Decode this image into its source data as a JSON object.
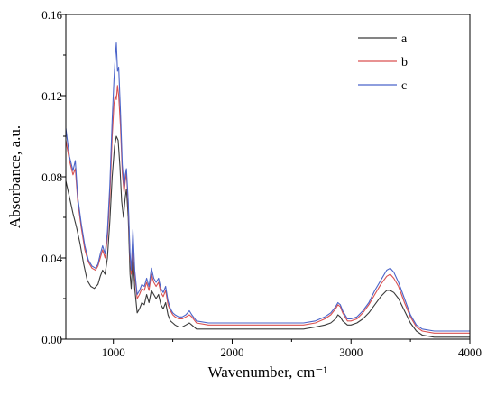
{
  "chart_data": {
    "type": "line",
    "xlabel": "Wavenumber, cm⁻¹",
    "ylabel": "Absorbance, a.u.",
    "xlim": [
      600,
      4000
    ],
    "ylim": [
      0,
      0.16
    ],
    "x_ticks": [
      1000,
      2000,
      3000,
      4000
    ],
    "y_ticks": [
      0.0,
      0.04,
      0.08,
      0.12,
      0.16
    ],
    "x_tick_labels": [
      "1000",
      "2000",
      "3000",
      "4000"
    ],
    "y_tick_labels": [
      "0.00",
      "0.04",
      "0.08",
      "0.12",
      "0.16"
    ],
    "grid": false,
    "legend_position": "top-right",
    "series": [
      {
        "name": "a",
        "color": "#3a3a3a",
        "points": [
          [
            600,
            0.078
          ],
          [
            630,
            0.07
          ],
          [
            660,
            0.062
          ],
          [
            690,
            0.055
          ],
          [
            720,
            0.047
          ],
          [
            750,
            0.037
          ],
          [
            780,
            0.029
          ],
          [
            810,
            0.026
          ],
          [
            840,
            0.025
          ],
          [
            870,
            0.027
          ],
          [
            890,
            0.031
          ],
          [
            910,
            0.034
          ],
          [
            930,
            0.032
          ],
          [
            950,
            0.04
          ],
          [
            970,
            0.058
          ],
          [
            990,
            0.08
          ],
          [
            1010,
            0.095
          ],
          [
            1025,
            0.1
          ],
          [
            1040,
            0.098
          ],
          [
            1055,
            0.085
          ],
          [
            1070,
            0.068
          ],
          [
            1085,
            0.06
          ],
          [
            1100,
            0.07
          ],
          [
            1110,
            0.074
          ],
          [
            1125,
            0.06
          ],
          [
            1140,
            0.032
          ],
          [
            1150,
            0.025
          ],
          [
            1165,
            0.042
          ],
          [
            1180,
            0.025
          ],
          [
            1200,
            0.013
          ],
          [
            1220,
            0.015
          ],
          [
            1240,
            0.018
          ],
          [
            1260,
            0.017
          ],
          [
            1280,
            0.022
          ],
          [
            1300,
            0.018
          ],
          [
            1320,
            0.024
          ],
          [
            1340,
            0.022
          ],
          [
            1360,
            0.02
          ],
          [
            1380,
            0.022
          ],
          [
            1400,
            0.017
          ],
          [
            1420,
            0.015
          ],
          [
            1440,
            0.018
          ],
          [
            1460,
            0.012
          ],
          [
            1480,
            0.009
          ],
          [
            1500,
            0.008
          ],
          [
            1520,
            0.007
          ],
          [
            1550,
            0.006
          ],
          [
            1580,
            0.006
          ],
          [
            1610,
            0.007
          ],
          [
            1640,
            0.008
          ],
          [
            1660,
            0.007
          ],
          [
            1700,
            0.005
          ],
          [
            1800,
            0.005
          ],
          [
            1900,
            0.005
          ],
          [
            2000,
            0.005
          ],
          [
            2100,
            0.005
          ],
          [
            2200,
            0.005
          ],
          [
            2300,
            0.005
          ],
          [
            2400,
            0.005
          ],
          [
            2500,
            0.005
          ],
          [
            2600,
            0.005
          ],
          [
            2700,
            0.006
          ],
          [
            2780,
            0.007
          ],
          [
            2830,
            0.008
          ],
          [
            2870,
            0.01
          ],
          [
            2890,
            0.012
          ],
          [
            2910,
            0.011
          ],
          [
            2930,
            0.009
          ],
          [
            2970,
            0.007
          ],
          [
            3000,
            0.007
          ],
          [
            3050,
            0.008
          ],
          [
            3100,
            0.01
          ],
          [
            3150,
            0.013
          ],
          [
            3200,
            0.017
          ],
          [
            3250,
            0.021
          ],
          [
            3300,
            0.024
          ],
          [
            3330,
            0.024
          ],
          [
            3360,
            0.023
          ],
          [
            3400,
            0.02
          ],
          [
            3450,
            0.014
          ],
          [
            3500,
            0.008
          ],
          [
            3550,
            0.004
          ],
          [
            3600,
            0.002
          ],
          [
            3700,
            0.001
          ],
          [
            3800,
            0.001
          ],
          [
            3900,
            0.001
          ],
          [
            4000,
            0.001
          ]
        ]
      },
      {
        "name": "b",
        "color": "#d95050",
        "points": [
          [
            600,
            0.098
          ],
          [
            630,
            0.088
          ],
          [
            660,
            0.081
          ],
          [
            680,
            0.084
          ],
          [
            700,
            0.068
          ],
          [
            730,
            0.055
          ],
          [
            760,
            0.044
          ],
          [
            790,
            0.038
          ],
          [
            820,
            0.035
          ],
          [
            850,
            0.034
          ],
          [
            870,
            0.036
          ],
          [
            890,
            0.04
          ],
          [
            910,
            0.044
          ],
          [
            930,
            0.04
          ],
          [
            950,
            0.05
          ],
          [
            970,
            0.07
          ],
          [
            990,
            0.1
          ],
          [
            1005,
            0.116
          ],
          [
            1015,
            0.12
          ],
          [
            1025,
            0.118
          ],
          [
            1035,
            0.125
          ],
          [
            1045,
            0.12
          ],
          [
            1060,
            0.105
          ],
          [
            1075,
            0.082
          ],
          [
            1090,
            0.072
          ],
          [
            1100,
            0.078
          ],
          [
            1110,
            0.082
          ],
          [
            1125,
            0.066
          ],
          [
            1140,
            0.04
          ],
          [
            1150,
            0.032
          ],
          [
            1165,
            0.05
          ],
          [
            1180,
            0.032
          ],
          [
            1200,
            0.02
          ],
          [
            1220,
            0.022
          ],
          [
            1240,
            0.025
          ],
          [
            1260,
            0.024
          ],
          [
            1280,
            0.028
          ],
          [
            1300,
            0.024
          ],
          [
            1320,
            0.032
          ],
          [
            1340,
            0.028
          ],
          [
            1360,
            0.026
          ],
          [
            1380,
            0.028
          ],
          [
            1400,
            0.023
          ],
          [
            1420,
            0.021
          ],
          [
            1440,
            0.024
          ],
          [
            1460,
            0.017
          ],
          [
            1480,
            0.014
          ],
          [
            1500,
            0.012
          ],
          [
            1520,
            0.011
          ],
          [
            1550,
            0.01
          ],
          [
            1580,
            0.01
          ],
          [
            1610,
            0.011
          ],
          [
            1640,
            0.012
          ],
          [
            1660,
            0.011
          ],
          [
            1700,
            0.008
          ],
          [
            1800,
            0.007
          ],
          [
            1900,
            0.007
          ],
          [
            2000,
            0.007
          ],
          [
            2100,
            0.007
          ],
          [
            2200,
            0.007
          ],
          [
            2300,
            0.007
          ],
          [
            2400,
            0.007
          ],
          [
            2500,
            0.007
          ],
          [
            2600,
            0.007
          ],
          [
            2700,
            0.008
          ],
          [
            2780,
            0.01
          ],
          [
            2830,
            0.012
          ],
          [
            2870,
            0.015
          ],
          [
            2890,
            0.017
          ],
          [
            2910,
            0.016
          ],
          [
            2930,
            0.013
          ],
          [
            2970,
            0.009
          ],
          [
            3000,
            0.009
          ],
          [
            3050,
            0.01
          ],
          [
            3100,
            0.013
          ],
          [
            3150,
            0.017
          ],
          [
            3200,
            0.022
          ],
          [
            3250,
            0.027
          ],
          [
            3300,
            0.031
          ],
          [
            3330,
            0.032
          ],
          [
            3360,
            0.03
          ],
          [
            3400,
            0.026
          ],
          [
            3450,
            0.018
          ],
          [
            3500,
            0.011
          ],
          [
            3550,
            0.006
          ],
          [
            3600,
            0.004
          ],
          [
            3700,
            0.003
          ],
          [
            3800,
            0.003
          ],
          [
            3900,
            0.003
          ],
          [
            4000,
            0.003
          ]
        ]
      },
      {
        "name": "c",
        "color": "#4a63c9",
        "points": [
          [
            600,
            0.104
          ],
          [
            630,
            0.09
          ],
          [
            660,
            0.083
          ],
          [
            680,
            0.088
          ],
          [
            700,
            0.07
          ],
          [
            730,
            0.057
          ],
          [
            760,
            0.046
          ],
          [
            790,
            0.039
          ],
          [
            820,
            0.036
          ],
          [
            850,
            0.035
          ],
          [
            870,
            0.037
          ],
          [
            890,
            0.042
          ],
          [
            910,
            0.046
          ],
          [
            930,
            0.042
          ],
          [
            950,
            0.053
          ],
          [
            970,
            0.076
          ],
          [
            990,
            0.108
          ],
          [
            1005,
            0.128
          ],
          [
            1015,
            0.138
          ],
          [
            1025,
            0.146
          ],
          [
            1035,
            0.132
          ],
          [
            1045,
            0.134
          ],
          [
            1060,
            0.112
          ],
          [
            1075,
            0.086
          ],
          [
            1090,
            0.075
          ],
          [
            1100,
            0.081
          ],
          [
            1110,
            0.084
          ],
          [
            1125,
            0.068
          ],
          [
            1140,
            0.042
          ],
          [
            1150,
            0.034
          ],
          [
            1165,
            0.054
          ],
          [
            1180,
            0.034
          ],
          [
            1200,
            0.022
          ],
          [
            1220,
            0.024
          ],
          [
            1240,
            0.027
          ],
          [
            1260,
            0.026
          ],
          [
            1280,
            0.03
          ],
          [
            1300,
            0.026
          ],
          [
            1320,
            0.035
          ],
          [
            1340,
            0.03
          ],
          [
            1360,
            0.028
          ],
          [
            1380,
            0.03
          ],
          [
            1400,
            0.025
          ],
          [
            1420,
            0.023
          ],
          [
            1440,
            0.026
          ],
          [
            1460,
            0.019
          ],
          [
            1480,
            0.015
          ],
          [
            1500,
            0.013
          ],
          [
            1520,
            0.012
          ],
          [
            1550,
            0.011
          ],
          [
            1580,
            0.011
          ],
          [
            1610,
            0.012
          ],
          [
            1640,
            0.014
          ],
          [
            1660,
            0.012
          ],
          [
            1700,
            0.009
          ],
          [
            1800,
            0.008
          ],
          [
            1900,
            0.008
          ],
          [
            2000,
            0.008
          ],
          [
            2100,
            0.008
          ],
          [
            2200,
            0.008
          ],
          [
            2300,
            0.008
          ],
          [
            2400,
            0.008
          ],
          [
            2500,
            0.008
          ],
          [
            2600,
            0.008
          ],
          [
            2700,
            0.009
          ],
          [
            2780,
            0.011
          ],
          [
            2830,
            0.013
          ],
          [
            2870,
            0.016
          ],
          [
            2890,
            0.018
          ],
          [
            2910,
            0.017
          ],
          [
            2930,
            0.014
          ],
          [
            2970,
            0.01
          ],
          [
            3000,
            0.01
          ],
          [
            3050,
            0.011
          ],
          [
            3100,
            0.014
          ],
          [
            3150,
            0.018
          ],
          [
            3200,
            0.024
          ],
          [
            3250,
            0.029
          ],
          [
            3300,
            0.034
          ],
          [
            3330,
            0.035
          ],
          [
            3360,
            0.033
          ],
          [
            3400,
            0.028
          ],
          [
            3450,
            0.02
          ],
          [
            3500,
            0.012
          ],
          [
            3550,
            0.007
          ],
          [
            3600,
            0.005
          ],
          [
            3700,
            0.004
          ],
          [
            3800,
            0.004
          ],
          [
            3900,
            0.004
          ],
          [
            4000,
            0.004
          ]
        ]
      }
    ]
  }
}
